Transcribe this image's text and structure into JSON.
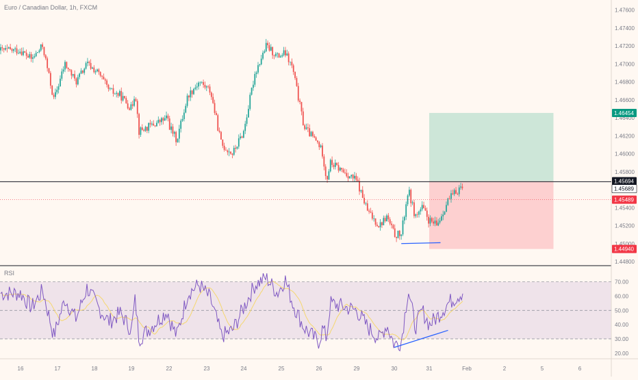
{
  "header": {
    "title": "Euro / Canadian Dollar, 1h, FXCM"
  },
  "rsi_panel": {
    "label": "RSI"
  },
  "colors": {
    "background": "#fff8f2",
    "up": "#26a69a",
    "down": "#ef5350",
    "rsi_line": "#7e57c2",
    "rsi_ma": "#f5d76e",
    "rsi_band": "#ede0ea",
    "divergence_line": "#2962ff",
    "profit_zone": "#cde6d8",
    "loss_zone": "#fdd0d0",
    "badge_target": "#089981",
    "badge_entry": "#131722",
    "badge_current": "#f23645",
    "badge_stop": "#f23645"
  },
  "chart_data": [
    {
      "type": "candlestick",
      "title": "Euro / Canadian Dollar, 1h, FXCM",
      "x_tick_labels": [
        "16",
        "17",
        "18",
        "19",
        "22",
        "23",
        "24",
        "25",
        "26",
        "29",
        "30",
        "31",
        "Feb",
        "2",
        "5",
        "6"
      ],
      "x_tick_days": [
        16,
        17,
        18,
        19,
        22,
        23,
        24,
        25,
        26,
        29,
        30,
        31,
        32,
        33,
        36,
        37
      ],
      "y_tick_labels": [
        "1.47600",
        "1.47400",
        "1.47200",
        "1.47000",
        "1.46800",
        "1.46600",
        "1.46400",
        "1.46200",
        "1.46000",
        "1.45800",
        "1.45600",
        "1.45400",
        "1.45200",
        "1.45000",
        "1.44800"
      ],
      "ylim": [
        1.448,
        1.4765
      ],
      "last_day": 31.9,
      "close_path": {
        "days": [
          16.0,
          16.3,
          16.6,
          16.9,
          17.2,
          17.5,
          17.8,
          18.1,
          18.4,
          18.7,
          19.0,
          19.3,
          19.6,
          21.9,
          22.2,
          22.5,
          22.8,
          23.1,
          23.4,
          23.7,
          24.0,
          24.3,
          24.6,
          24.9,
          25.1,
          25.3,
          25.6,
          25.9,
          26.0,
          26.3,
          26.6,
          26.9,
          29.0,
          29.3,
          29.6,
          29.8,
          30.0,
          30.2,
          30.4,
          30.6,
          30.8,
          31.0,
          31.2,
          31.5,
          31.9
        ],
        "prices": [
          1.4715,
          1.4705,
          1.472,
          1.466,
          1.47,
          1.468,
          1.47,
          1.469,
          1.467,
          1.4665,
          1.465,
          1.467,
          1.4625,
          1.464,
          1.4615,
          1.4665,
          1.468,
          1.467,
          1.461,
          1.46,
          1.4625,
          1.469,
          1.472,
          1.4708,
          1.4712,
          1.4695,
          1.463,
          1.4615,
          1.461,
          1.46,
          1.457,
          1.459,
          1.457,
          1.4535,
          1.452,
          1.453,
          1.451,
          1.451,
          1.456,
          1.453,
          1.454,
          1.4525,
          1.452,
          1.4548,
          1.4566
        ]
      },
      "position_tool": {
        "type": "long",
        "target": 1.46454,
        "entry": 1.45694,
        "stop": 1.4494,
        "start_day": 31.0,
        "end_day": 36.3
      },
      "price_badges": [
        {
          "label": "1.46454",
          "price": 1.46454,
          "role": "target"
        },
        {
          "label": "1.45694",
          "price": 1.45694,
          "role": "entry"
        },
        {
          "label": "1.45689",
          "price": 1.45689,
          "role": "level"
        },
        {
          "label": "1.45489",
          "price": 1.45489,
          "role": "current"
        },
        {
          "label": "1.44940",
          "price": 1.4494,
          "role": "stop"
        }
      ],
      "horizontal_line": {
        "price": 1.45689
      },
      "current_price": 1.45489,
      "support_line": {
        "days": [
          30.2,
          31.3
        ],
        "prices": [
          1.45,
          1.4501
        ]
      }
    },
    {
      "type": "line",
      "title": "RSI",
      "y_tick_labels": [
        "70.00",
        "60.00",
        "50.00",
        "40.00",
        "30.00",
        "20.00"
      ],
      "ylim": [
        17,
        78
      ],
      "bands": {
        "upper": 70,
        "middle": 50,
        "lower": 30
      },
      "rsi_path": {
        "days": [
          16.0,
          16.3,
          16.6,
          16.9,
          17.2,
          17.5,
          17.8,
          18.1,
          18.4,
          18.7,
          19.0,
          19.3,
          19.6,
          21.9,
          22.2,
          22.5,
          22.8,
          23.1,
          23.4,
          23.7,
          24.0,
          24.3,
          24.6,
          24.9,
          25.1,
          25.3,
          25.6,
          25.9,
          26.0,
          26.3,
          26.6,
          26.9,
          29.0,
          29.3,
          29.6,
          29.8,
          30.0,
          30.2,
          30.4,
          30.6,
          30.8,
          31.0,
          31.2,
          31.5,
          31.9
        ],
        "values": [
          62,
          52,
          64,
          32,
          58,
          44,
          66,
          52,
          42,
          48,
          36,
          58,
          30,
          50,
          32,
          62,
          68,
          58,
          32,
          36,
          52,
          68,
          73,
          62,
          72,
          55,
          38,
          30,
          28,
          38,
          30,
          55,
          50,
          38,
          30,
          40,
          26,
          28,
          65,
          38,
          50,
          40,
          45,
          55,
          63
        ]
      },
      "divergence_line": {
        "days": [
          30.0,
          31.5
        ],
        "values": [
          24,
          36
        ]
      }
    }
  ]
}
